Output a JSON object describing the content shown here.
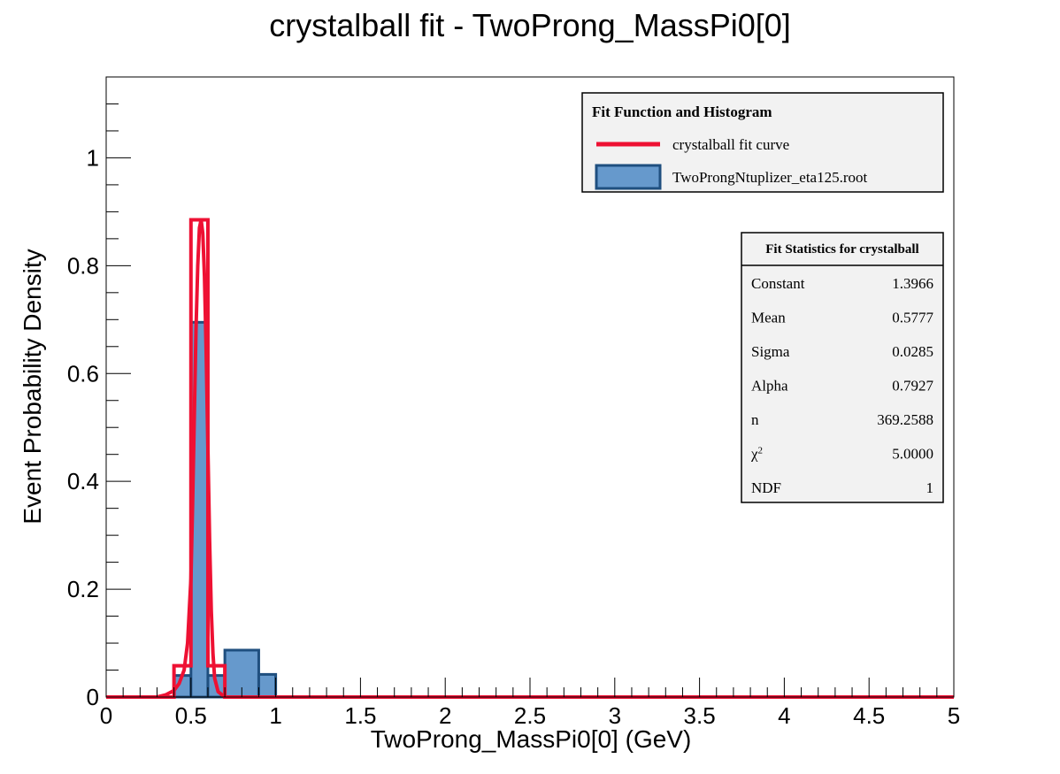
{
  "chart_data": {
    "type": "histogram",
    "title": "crystalball fit - TwoProng_MassPi0[0]",
    "xlabel": "TwoProng_MassPi0[0] (GeV)",
    "ylabel": "Event Probability Density",
    "xlim": [
      0,
      5
    ],
    "ylim": [
      0,
      1.15
    ],
    "xticks": [
      "0",
      "0.5",
      "1",
      "1.5",
      "2",
      "2.5",
      "3",
      "3.5",
      "4",
      "4.5",
      "5"
    ],
    "xtick_values": [
      0,
      0.5,
      1,
      1.5,
      2,
      2.5,
      3,
      3.5,
      4,
      4.5,
      5
    ],
    "yticks": [
      "0",
      "0.2",
      "0.4",
      "0.6",
      "0.8",
      "1"
    ],
    "ytick_values": [
      0,
      0.2,
      0.4,
      0.6,
      0.8,
      1
    ],
    "histogram": {
      "name": "TwoProngNtuplizer_eta125.root",
      "color": "#6699cc",
      "edge_color": "#1f4f7f",
      "bins": [
        {
          "x0": 0.4,
          "x1": 0.5,
          "y": 0.04
        },
        {
          "x0": 0.5,
          "x1": 0.6,
          "y": 0.695
        },
        {
          "x0": 0.6,
          "x1": 0.7,
          "y": 0.04
        },
        {
          "x0": 0.7,
          "x1": 0.9,
          "y": 0.087
        },
        {
          "x0": 0.9,
          "x1": 1.0,
          "y": 0.042
        }
      ]
    },
    "fit_curve": {
      "name": "crystalball fit curve",
      "color": "#ee1133",
      "outline_steps": [
        {
          "x0": 0.4,
          "x1": 0.5,
          "y": 0.058
        },
        {
          "x0": 0.5,
          "x1": 0.6,
          "y": 0.885
        },
        {
          "x0": 0.6,
          "x1": 0.7,
          "y": 0.058
        }
      ],
      "smooth_points": [
        [
          0.0,
          0.0
        ],
        [
          0.3,
          0.0
        ],
        [
          0.35,
          0.004
        ],
        [
          0.4,
          0.012
        ],
        [
          0.43,
          0.025
        ],
        [
          0.46,
          0.05
        ],
        [
          0.48,
          0.1
        ],
        [
          0.5,
          0.22
        ],
        [
          0.51,
          0.36
        ],
        [
          0.52,
          0.52
        ],
        [
          0.53,
          0.68
        ],
        [
          0.54,
          0.8
        ],
        [
          0.55,
          0.87
        ],
        [
          0.56,
          0.885
        ],
        [
          0.57,
          0.86
        ],
        [
          0.58,
          0.78
        ],
        [
          0.59,
          0.64
        ],
        [
          0.6,
          0.46
        ],
        [
          0.61,
          0.29
        ],
        [
          0.62,
          0.16
        ],
        [
          0.63,
          0.08
        ],
        [
          0.64,
          0.035
        ],
        [
          0.66,
          0.01
        ],
        [
          0.7,
          0.0
        ],
        [
          5.0,
          0.0
        ]
      ]
    },
    "legend": {
      "title": "Fit Function and Histogram",
      "placement": "top-right",
      "entries": [
        "crystalball fit curve",
        "TwoProngNtuplizer_eta125.root"
      ]
    },
    "stats_box": {
      "title": "Fit Statistics for crystalball",
      "rows": [
        {
          "label": "Constant",
          "value": "1.3966"
        },
        {
          "label": "Mean",
          "value": "0.5777"
        },
        {
          "label": "Sigma",
          "value": "0.0285"
        },
        {
          "label": "Alpha",
          "value": "0.7927"
        },
        {
          "label": "n",
          "value": "369.2588"
        },
        {
          "label": "χ",
          "sup": "2",
          "value": "5.0000"
        },
        {
          "label": "NDF",
          "value": "1"
        }
      ]
    }
  }
}
